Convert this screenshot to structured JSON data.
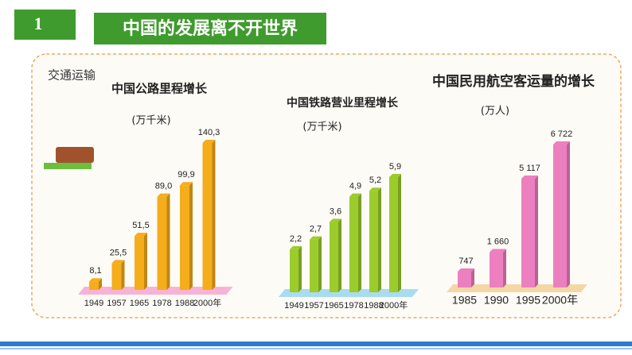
{
  "header": {
    "number": "1",
    "title": "中国的发展离不开世界",
    "section": "交通运输"
  },
  "chart_data": [
    {
      "type": "bar",
      "title": "中国公路里程增长",
      "subtitle": "(万千米)",
      "categories": [
        "1949",
        "1957",
        "1965",
        "1978",
        "1988",
        "2000年"
      ],
      "values": [
        8.1,
        25.5,
        51.5,
        89.0,
        99.9,
        140.3
      ],
      "value_labels": [
        "8,1",
        "25,5",
        "51,5",
        "89,0",
        "99,9",
        "140,3"
      ],
      "color": "#f5ad1c"
    },
    {
      "type": "bar",
      "title": "中国铁路营业里程增长",
      "subtitle": "(万千米)",
      "categories": [
        "1949",
        "1957",
        "1965",
        "1978",
        "1988",
        "2000年"
      ],
      "values": [
        2.2,
        2.7,
        3.6,
        4.9,
        5.2,
        5.9
      ],
      "value_labels": [
        "2,2",
        "2,7",
        "3,6",
        "4,9",
        "5,2",
        "5,9"
      ],
      "color": "#9ccc2c"
    },
    {
      "type": "bar",
      "title": "中国民用航空客运量的增长",
      "subtitle": "(万人)",
      "categories": [
        "1985",
        "1990",
        "1995",
        "2000年"
      ],
      "values": [
        747,
        1660,
        5117,
        6722
      ],
      "value_labels": [
        "747",
        "1 660",
        "5 117",
        "6 722"
      ],
      "color": "#ec7fbf"
    }
  ]
}
